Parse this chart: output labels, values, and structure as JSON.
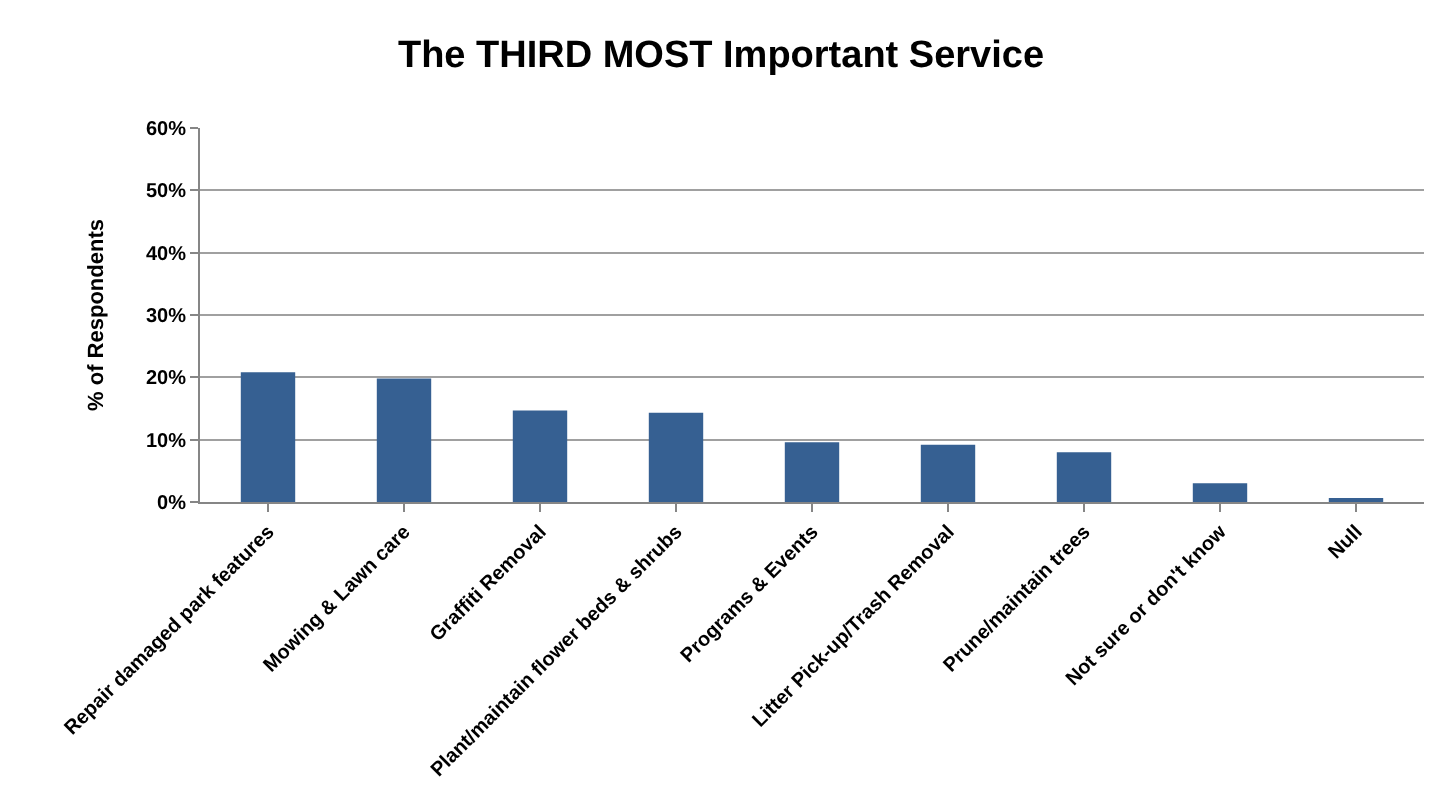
{
  "chart_data": {
    "type": "bar",
    "title": "The THIRD MOST Important Service",
    "ylabel": "% of Respondents",
    "categories": [
      "Repair damaged park features",
      "Mowing & Lawn care",
      "Graffiti Removal",
      "Plant/maintain flower beds & shrubs",
      "Programs & Events",
      "Litter Pick-up/Trash Removal",
      "Prune/maintain trees",
      "Not sure or don't know",
      "Null"
    ],
    "values": [
      20.8,
      19.8,
      14.7,
      14.3,
      9.6,
      9.2,
      8.0,
      3.0,
      0.5
    ],
    "color": "#366092",
    "ylim": [
      0,
      60
    ],
    "yticks": [
      {
        "value": 0,
        "label": "0%"
      },
      {
        "value": 10,
        "label": "10%"
      },
      {
        "value": 20,
        "label": "20%"
      },
      {
        "value": 30,
        "label": "30%"
      },
      {
        "value": 40,
        "label": "40%"
      },
      {
        "value": 50,
        "label": "50%"
      },
      {
        "value": 60,
        "label": "60%"
      }
    ],
    "grid": "y",
    "legend": false
  }
}
